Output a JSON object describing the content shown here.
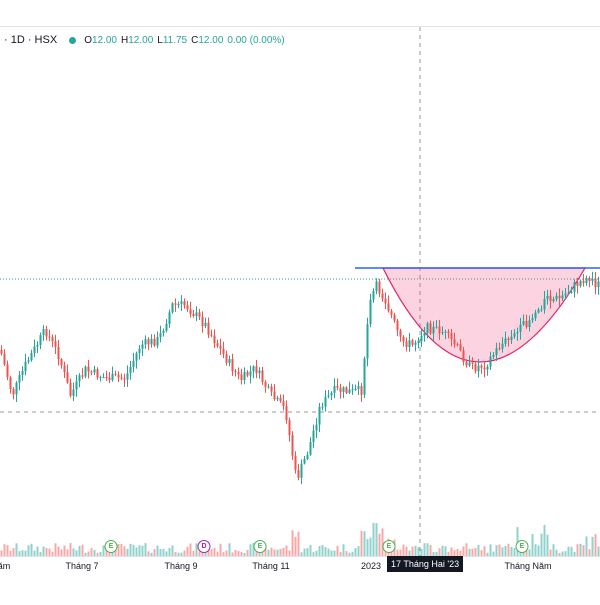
{
  "header": {
    "symbol": "· 1D · HSX",
    "status_dot_color": "#26a69a",
    "ohlc": {
      "o_label": "O",
      "o": "12.00",
      "h_label": "H",
      "h": "12.00",
      "l_label": "L",
      "l": "11.75",
      "c_label": "C",
      "c": "12.00",
      "change": "0.00 (0.00%)"
    }
  },
  "time_axis": {
    "labels": [
      "ăm",
      "Tháng 7",
      "Tháng 9",
      "Tháng 11",
      "2023",
      "Tháng Năm"
    ],
    "crosshair_label": "17 Tháng Hai '23"
  },
  "events": [
    {
      "letter": "E",
      "kind": "earnings"
    },
    {
      "letter": "D",
      "kind": "dividend"
    },
    {
      "letter": "E",
      "kind": "earnings"
    },
    {
      "letter": "E",
      "kind": "earnings"
    },
    {
      "letter": "E",
      "kind": "earnings"
    }
  ],
  "colors": {
    "up": "#26a69a",
    "down": "#ef5350",
    "resistance_line": "#2962ff",
    "cup_fill": "rgba(242,54,112,0.22)",
    "cup_stroke": "#e91e63",
    "crosshair": "#9598a1"
  },
  "chart_data": {
    "type": "candlestick",
    "title": "",
    "xlabel": "",
    "ylabel": "",
    "note": "Daily candlesticks with volume; cup pattern drawn between early 2023 peak and May 2023."
  }
}
